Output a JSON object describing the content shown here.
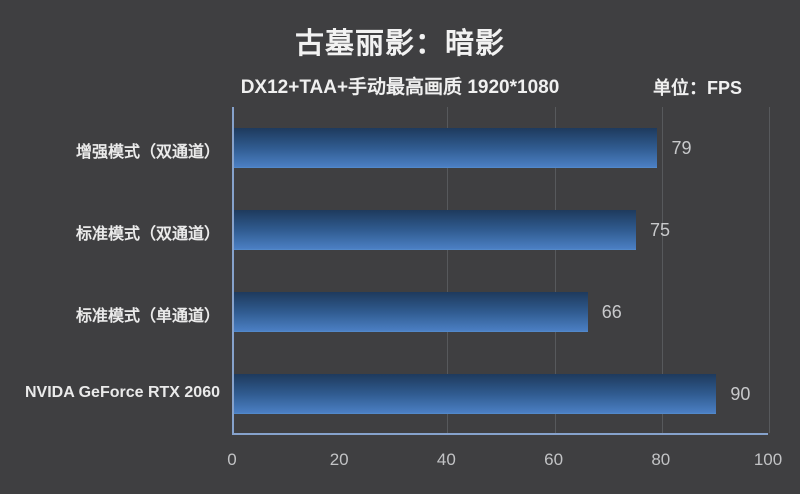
{
  "header": {
    "title": "古墓丽影：暗影",
    "subtitle": "DX12+TAA+手动最高画质 1920*1080",
    "unit_label": "单位：FPS"
  },
  "chart_data": {
    "type": "bar",
    "orientation": "horizontal",
    "title": "古墓丽影：暗影",
    "subtitle": "DX12+TAA+手动最高画质 1920*1080",
    "unit": "FPS",
    "categories": [
      "增强模式（双通道）",
      "标准模式（双通道）",
      "标准模式（单通道）",
      "NVIDA GeForce RTX 2060"
    ],
    "values": [
      79,
      75,
      66,
      90
    ],
    "xlim": [
      0,
      100
    ],
    "x_ticks": [
      "0",
      "20",
      "40",
      "60",
      "80",
      "100"
    ],
    "gridlines_at": [
      40,
      60,
      80,
      100
    ],
    "grid": "vertical-only",
    "legend": "none",
    "value_labels": "outside-end"
  },
  "colors": {
    "background": "#3f3f41",
    "bar_gradient_top": "#1e3a5d",
    "bar_gradient_bottom": "#4a7ec2",
    "axis_line": "#86a2cc",
    "gridline": "#57595c",
    "title_text": "#f2f2f2",
    "category_text": "#eaeaea",
    "value_text": "#c8c9cb",
    "tick_text": "#c2c3c5"
  }
}
